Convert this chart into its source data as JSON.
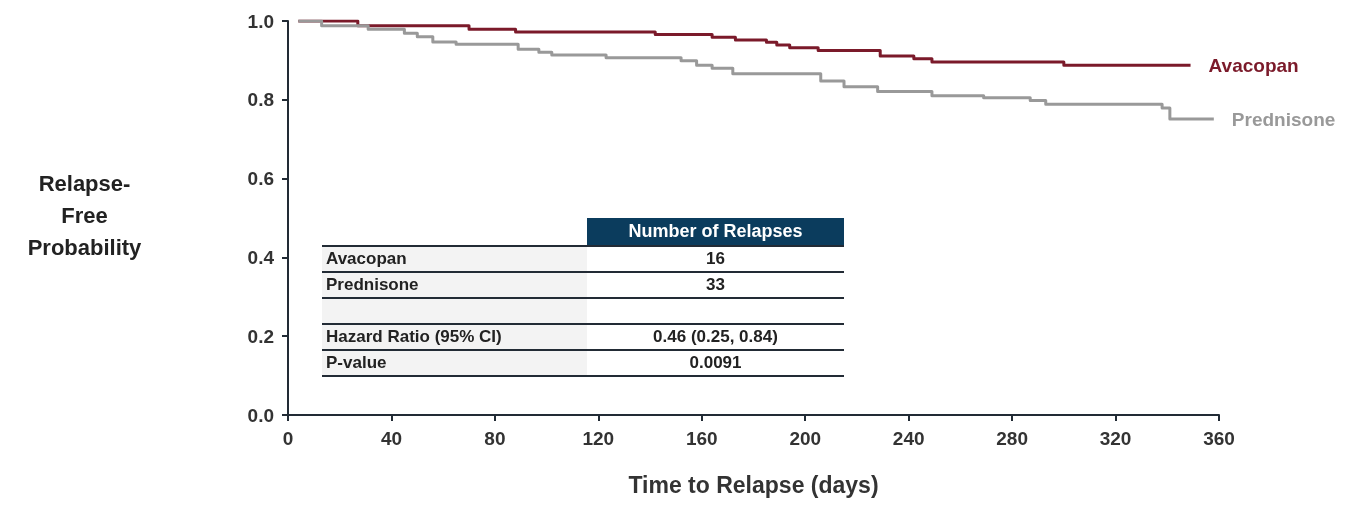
{
  "chart_data": {
    "type": "step",
    "xlabel": "Time to Relapse (days)",
    "ylabel": "Relapse-Free Probability",
    "xlim": [
      0,
      360
    ],
    "xticks": [
      0,
      40,
      80,
      120,
      160,
      200,
      240,
      280,
      320,
      360
    ],
    "ylim": [
      0,
      1
    ],
    "yticks": [
      {
        "value": 0,
        "label": "0.0"
      },
      {
        "value": 0.2,
        "label": "0.2"
      },
      {
        "value": 0.4,
        "label": "0.4"
      },
      {
        "value": 0.6,
        "label": "0.6"
      },
      {
        "value": 0.8,
        "label": "0.8"
      },
      {
        "value": 1,
        "label": "1.0"
      }
    ],
    "grid": false,
    "legend": false,
    "line_style": "solid",
    "marker": "none",
    "series": [
      {
        "name": "Avacopan",
        "color": "#7b1a2a",
        "x": [
          4,
          27,
          70,
          88,
          142,
          164,
          173,
          185,
          189,
          194,
          205,
          229,
          242,
          249,
          300,
          349
        ],
        "values": [
          1,
          0.988,
          0.979,
          0.972,
          0.966,
          0.959,
          0.952,
          0.946,
          0.939,
          0.932,
          0.925,
          0.911,
          0.904,
          0.896,
          0.888,
          0.888
        ]
      },
      {
        "name": "Prednisone",
        "color": "#999999",
        "x": [
          4,
          13,
          31,
          45,
          50,
          56,
          65,
          89,
          97,
          102,
          123,
          152,
          158,
          164,
          172,
          206,
          215,
          228,
          249,
          269,
          287,
          293,
          338,
          341,
          358
        ],
        "values": [
          1,
          0.988,
          0.979,
          0.969,
          0.96,
          0.947,
          0.941,
          0.928,
          0.921,
          0.914,
          0.907,
          0.899,
          0.888,
          0.88,
          0.866,
          0.848,
          0.833,
          0.821,
          0.81,
          0.805,
          0.798,
          0.789,
          0.779,
          0.751,
          0.751
        ]
      }
    ],
    "annotations": [
      "Number of Relapses",
      "Avacopan",
      "16",
      "Prednisone",
      "33",
      "Hazard Ratio (95% CI)",
      "0.46 (0.25, 0.84)",
      "P-value",
      "0.0091"
    ]
  }
}
